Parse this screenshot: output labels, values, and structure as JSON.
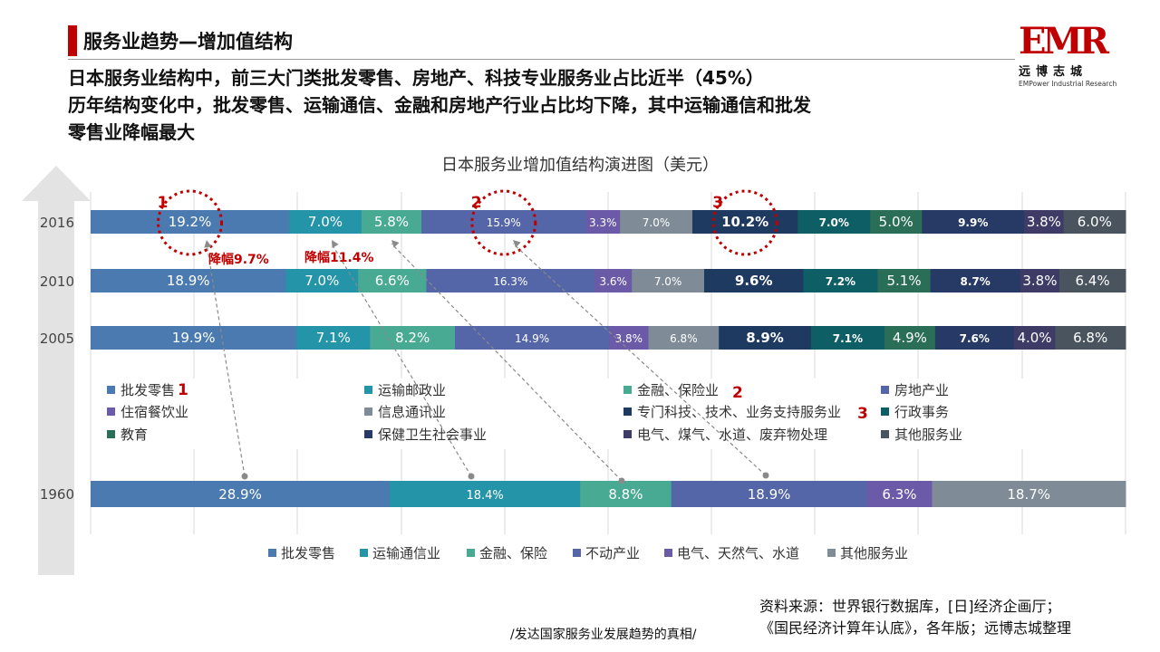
{
  "header": {
    "title": "服务业趋势—增加值结构",
    "headline_lines": [
      "日本服务业结构中，前三大门类批发零售、房地产、科技专业服务业占比近半（45%）",
      "历年结构变化中，批发零售、运输通信、金融和房地产行业占比均下降，其中运输通信和批发",
      "零售业降幅最大"
    ]
  },
  "logo": {
    "mark": "EMR",
    "name_cn": "远博志城",
    "name_en": "EMPower Industrial Research",
    "color": "#c00000"
  },
  "chart_data": [
    {
      "type": "bar",
      "orientation": "horizontal",
      "stacked": "100%",
      "title": "日本服务业增加值结构演进图（美元）",
      "categories": [
        "2016",
        "2010",
        "2005"
      ],
      "series": [
        {
          "name": "批发零售",
          "values": [
            19.2,
            18.9,
            19.9
          ],
          "labels": [
            "19.2%",
            "18.9%",
            "19.9%"
          ],
          "color": "#4a7ab0"
        },
        {
          "name": "运输邮政业",
          "values": [
            7.0,
            7.0,
            7.1
          ],
          "labels": [
            "7.0%",
            "7.0%",
            "7.1%"
          ],
          "color": "#2494a8"
        },
        {
          "name": "金融、保险业",
          "values": [
            5.8,
            6.6,
            8.2
          ],
          "labels": [
            "5.8%",
            "6.6%",
            "8.2%"
          ],
          "color": "#48aa92"
        },
        {
          "name": "房地产业",
          "values": [
            15.9,
            16.3,
            14.9
          ],
          "labels": [
            "15.9%",
            "16.3%",
            "14.9%"
          ],
          "color": "#5466a8"
        },
        {
          "name": "住宿餐饮业",
          "values": [
            3.3,
            3.6,
            3.8
          ],
          "labels": [
            "3.3%",
            "3.6%",
            "3.8%"
          ],
          "color": "#6a5aa8"
        },
        {
          "name": "信息通讯业",
          "values": [
            7.0,
            7.0,
            6.8
          ],
          "labels": [
            "7.0%",
            "7.0%",
            "6.8%"
          ],
          "color": "#7f8c97"
        },
        {
          "name": "专门科技、技术、业务支持服务业",
          "values": [
            10.2,
            9.6,
            8.9
          ],
          "labels": [
            "10.2%",
            "9.6%",
            "8.9%"
          ],
          "color": "#1e3a60"
        },
        {
          "name": "行政事务",
          "values": [
            7.0,
            7.2,
            7.1
          ],
          "labels": [
            "7.0%",
            "7.2%",
            "7.1%"
          ],
          "color": "#0e5e66"
        },
        {
          "name": "教育",
          "values": [
            5.0,
            5.1,
            4.9
          ],
          "labels": [
            "5.0%",
            "5.1%",
            "4.9%"
          ],
          "color": "#2b6e58"
        },
        {
          "name": "保健卫生社会事业",
          "values": [
            9.9,
            8.7,
            7.6
          ],
          "labels": [
            "9.9%",
            "8.7%",
            "7.6%"
          ],
          "color": "#273a66"
        },
        {
          "name": "电气、煤气、水道、废弃物处理",
          "values": [
            3.8,
            3.8,
            4.0
          ],
          "labels": [
            "3.8%",
            "3.8%",
            "4.0%"
          ],
          "color": "#3e3c66"
        },
        {
          "name": "其他服务业",
          "values": [
            6.0,
            6.4,
            6.8
          ],
          "labels": [
            "6.0%",
            "6.4%",
            "6.8%"
          ],
          "color": "#4a545e"
        }
      ],
      "annotations": {
        "circle_markers": [
          "1",
          "2",
          "3"
        ],
        "declines": [
          "降幅9.7%",
          "降幅11.4%"
        ]
      }
    },
    {
      "type": "bar",
      "orientation": "horizontal",
      "stacked": "100%",
      "categories": [
        "1960"
      ],
      "series": [
        {
          "name": "批发零售",
          "values": [
            28.9
          ],
          "labels": [
            "28.9%"
          ],
          "color": "#4a7ab0"
        },
        {
          "name": "运输通信业",
          "values": [
            18.4
          ],
          "labels": [
            "18.4%"
          ],
          "color": "#2494a8"
        },
        {
          "name": "金融、保险",
          "values": [
            8.8
          ],
          "labels": [
            "8.8%"
          ],
          "color": "#48aa92"
        },
        {
          "name": "不动产业",
          "values": [
            18.9
          ],
          "labels": [
            "18.9%"
          ],
          "color": "#5466a8"
        },
        {
          "name": "电气、天然气、水道",
          "values": [
            6.3
          ],
          "labels": [
            "6.3%"
          ],
          "color": "#6a5aa8"
        },
        {
          "name": "其他服务业",
          "values": [
            18.7
          ],
          "labels": [
            "18.7%"
          ],
          "color": "#7f8c97"
        }
      ]
    }
  ],
  "source": {
    "line1": "资料来源：世界银行数据库，[日]经济企画厅；",
    "line2": "《国民经济计算年认底》，各年版；远博志城整理"
  },
  "footer": "/发达国家服务业发展趋势的真相/"
}
